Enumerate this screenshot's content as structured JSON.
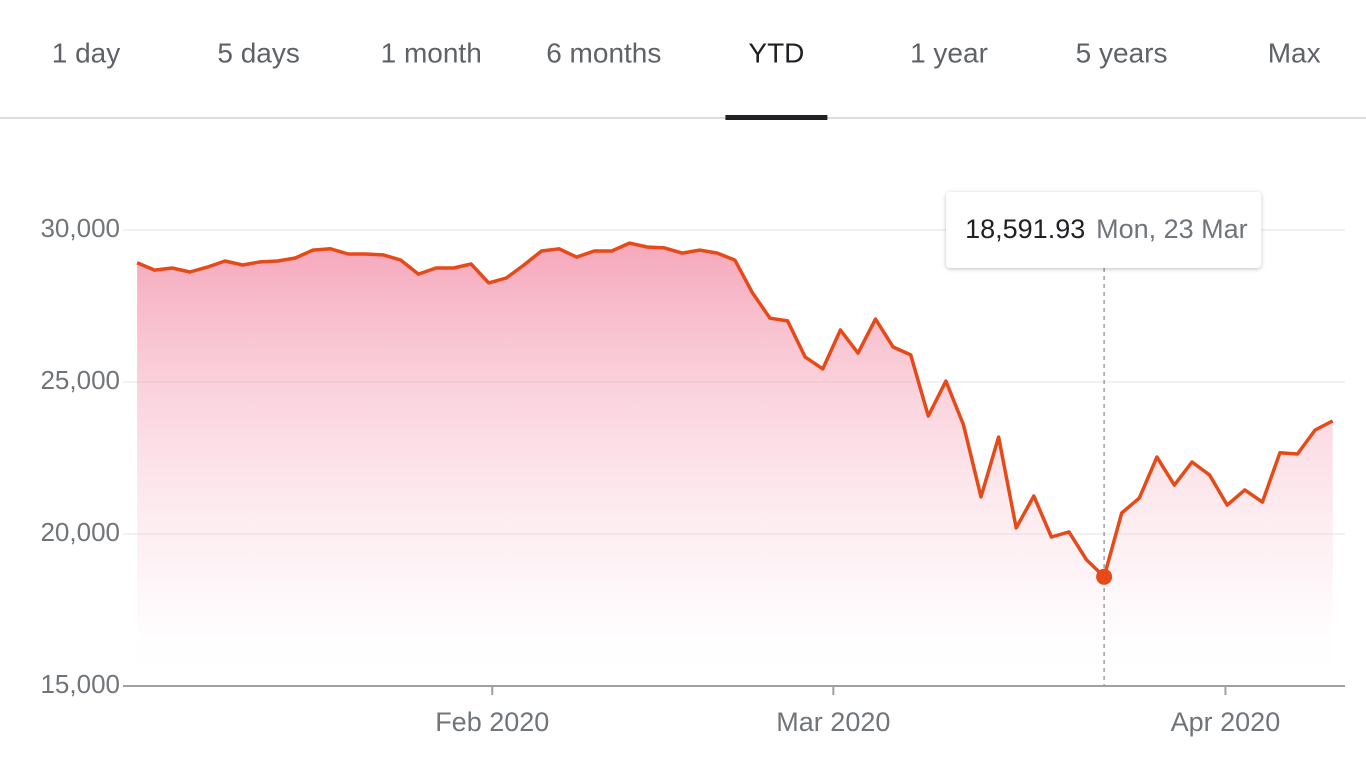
{
  "tabs": [
    {
      "label": "1 day"
    },
    {
      "label": "5 days"
    },
    {
      "label": "1 month"
    },
    {
      "label": "6 months"
    },
    {
      "label": "YTD",
      "selected": true
    },
    {
      "label": "1 year"
    },
    {
      "label": "5 years"
    },
    {
      "label": "Max"
    }
  ],
  "chart_data": {
    "type": "line",
    "color": "#e64a19",
    "area": true,
    "grid": true,
    "values": [
      28920,
      28680,
      28750,
      28620,
      28780,
      28980,
      28850,
      28950,
      28980,
      29080,
      29340,
      29380,
      29210,
      29210,
      29180,
      29010,
      28550,
      28750,
      28750,
      28880,
      28260,
      28420,
      28850,
      29310,
      29380,
      29110,
      29310,
      29310,
      29570,
      29440,
      29410,
      29240,
      29340,
      29240,
      29010,
      27930,
      27100,
      27010,
      25820,
      25430,
      26710,
      25950,
      27070,
      26150,
      25890,
      23880,
      25030,
      23590,
      21220,
      23190,
      20200,
      21250,
      19900,
      20070,
      19150,
      18591.93,
      20690,
      21180,
      22530,
      21610,
      22370,
      21940,
      20950,
      21450,
      21050,
      22670,
      22630,
      23420,
      23720
    ],
    "value_labels": [
      null,
      null,
      null,
      null,
      null,
      null,
      null,
      null,
      null,
      null,
      null,
      null,
      null,
      null,
      null,
      null,
      null,
      null,
      null,
      null,
      null,
      null,
      null,
      null,
      null,
      null,
      null,
      null,
      null,
      null,
      null,
      null,
      null,
      null,
      null,
      null,
      null,
      null,
      null,
      null,
      null,
      null,
      null,
      null,
      null,
      null,
      null,
      null,
      null,
      null,
      null,
      null,
      null,
      null,
      null,
      "18,591.93",
      null,
      null,
      null,
      null,
      null,
      null,
      null,
      null,
      null,
      null,
      null,
      null,
      null
    ],
    "tooltip_date": "Mon, 23 Mar",
    "xlim": [
      -0.8,
      68.7
    ],
    "xticks": [
      {
        "value": 20.2,
        "label": "Feb 2020"
      },
      {
        "value": 39.6,
        "label": "Mar 2020"
      },
      {
        "value": 61.9,
        "label": "Apr 2020"
      }
    ],
    "ylim": [
      15000,
      30000
    ],
    "yticks": [
      {
        "value": 15000,
        "label": "15,000"
      },
      {
        "value": 20000,
        "label": "20,000"
      },
      {
        "value": 25000,
        "label": "25,000"
      },
      {
        "value": 30000,
        "label": "30,000"
      }
    ]
  }
}
